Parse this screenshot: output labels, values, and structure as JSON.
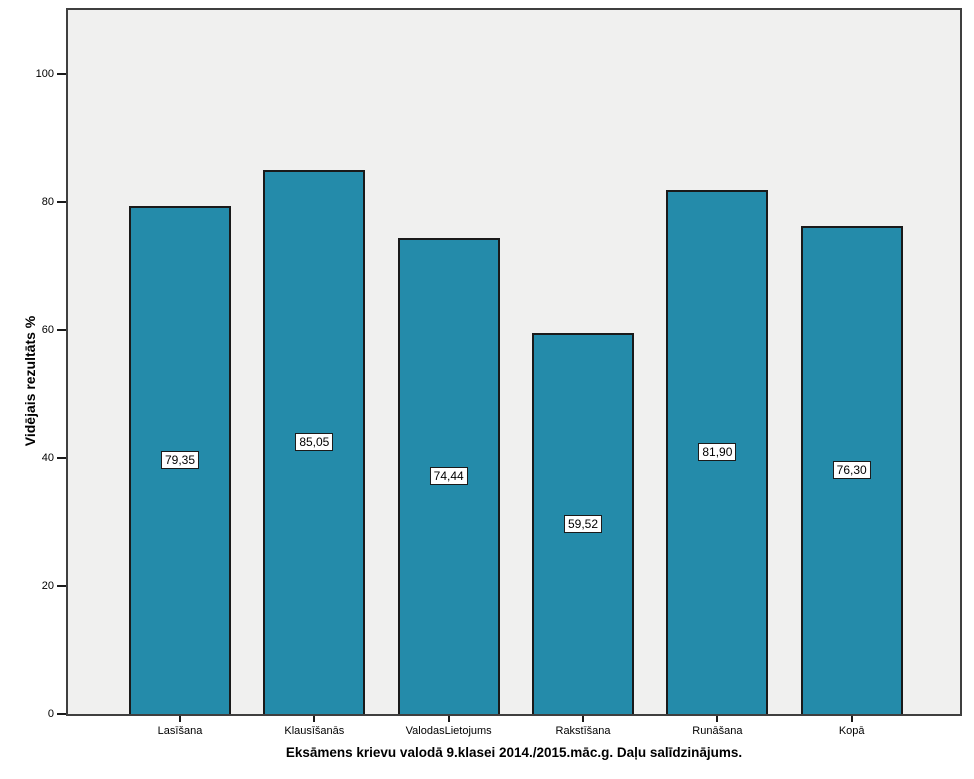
{
  "chart_data": {
    "type": "bar",
    "title": "Eksāmens krievu valodā 9.klasei 2014./2015.māc.g. Daļu salīdzinājums.",
    "ylabel": "Vidējais rezultāts %",
    "xlabel": "",
    "categories": [
      "Lasīšana",
      "Klausīšanās",
      "ValodasLietojums",
      "Rakstīšana",
      "Runāšana",
      "Kopā"
    ],
    "values": [
      79.35,
      85.05,
      74.44,
      59.52,
      81.9,
      76.3
    ],
    "value_labels": [
      "79,35",
      "85,05",
      "74,44",
      "59,52",
      "81,90",
      "76,30"
    ],
    "yticks": [
      0,
      20,
      40,
      60,
      80,
      100
    ],
    "ylim": [
      0,
      110
    ],
    "grid": false,
    "legend": false,
    "bar_color": "#248BAA",
    "bar_border_color": "#1A1A1A",
    "plot_background": "#F0F0EF",
    "frame_color": "#3F3F3F"
  }
}
